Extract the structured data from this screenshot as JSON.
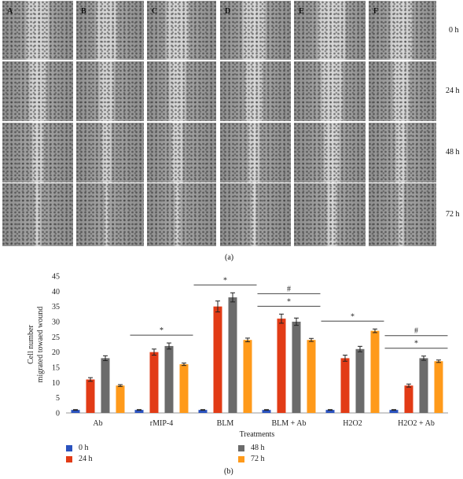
{
  "panel_a": {
    "columns": [
      "A",
      "B",
      "C",
      "D",
      "E",
      "F"
    ],
    "rows": [
      "0 h",
      "24 h",
      "48 h",
      "72 h"
    ],
    "caption": "(a)"
  },
  "panel_b": {
    "caption": "(b)"
  },
  "chart_data": {
    "type": "bar",
    "categories": [
      "Ab",
      "rMIP-4",
      "BLM",
      "BLM + Ab",
      "H2O2",
      "H2O2 + Ab"
    ],
    "series": [
      {
        "name": "0 h",
        "color": "#2a52be",
        "values": [
          1,
          1,
          1,
          1,
          1,
          1
        ],
        "errors": [
          0.1,
          0.1,
          0.1,
          0.1,
          0.1,
          0.1
        ]
      },
      {
        "name": "24 h",
        "color": "#e23b16",
        "values": [
          11,
          20,
          35,
          31,
          18,
          9
        ],
        "errors": [
          0.6,
          1.0,
          1.8,
          1.5,
          1.0,
          0.5
        ]
      },
      {
        "name": "48 h",
        "color": "#6b6b6b",
        "values": [
          18,
          22,
          38,
          30,
          21,
          18
        ],
        "errors": [
          0.8,
          1.0,
          1.5,
          1.2,
          0.9,
          0.7
        ]
      },
      {
        "name": "72 h",
        "color": "#ff9a1a",
        "values": [
          9,
          16,
          24,
          24,
          27,
          17
        ],
        "errors": [
          0.3,
          0.4,
          0.6,
          0.5,
          0.6,
          0.4
        ]
      }
    ],
    "ylabel_line1": "Cell number",
    "ylabel_line2": "migrated towaed wound",
    "xlabel": "Treatments",
    "ylim": [
      0,
      45
    ],
    "yticks": [
      0,
      5,
      10,
      15,
      20,
      25,
      30,
      35,
      40,
      45
    ],
    "grid": false,
    "legend_position": "bottom",
    "significance": [
      {
        "category_index": 1,
        "marks": [
          "*"
        ]
      },
      {
        "category_index": 2,
        "marks": [
          "*"
        ]
      },
      {
        "category_index": 3,
        "marks": [
          "*",
          "#"
        ]
      },
      {
        "category_index": 4,
        "marks": [
          "*"
        ]
      },
      {
        "category_index": 5,
        "marks": [
          "*",
          "#"
        ]
      }
    ]
  }
}
